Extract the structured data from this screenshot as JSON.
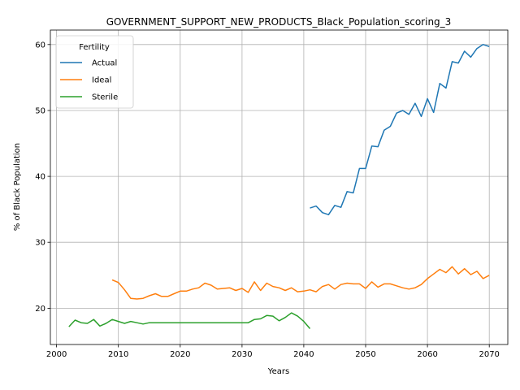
{
  "chart_data": {
    "type": "line",
    "title": "GOVERNMENT_SUPPORT_NEW_PRODUCTS_Black_Population_scoring_3",
    "xlabel": "Years",
    "ylabel": "% of Black Population",
    "xlim": [
      1999,
      2073
    ],
    "ylim": [
      14.5,
      62.2
    ],
    "xticks": [
      2000,
      2010,
      2020,
      2030,
      2040,
      2050,
      2060,
      2070
    ],
    "yticks": [
      20,
      30,
      40,
      50,
      60
    ],
    "grid": true,
    "legend": {
      "title": "Fertility",
      "placement": "top-left"
    },
    "series": [
      {
        "name": "Actual",
        "color": "#1f77b4",
        "x": [
          2041,
          2042,
          2043,
          2044,
          2045,
          2046,
          2047,
          2048,
          2049,
          2050,
          2051,
          2052,
          2053,
          2054,
          2055,
          2056,
          2057,
          2058,
          2059,
          2060,
          2061,
          2062,
          2063,
          2064,
          2065,
          2066,
          2067,
          2068,
          2069,
          2070
        ],
        "y": [
          35.2,
          35.5,
          34.5,
          34.2,
          35.6,
          35.3,
          37.7,
          37.5,
          41.2,
          41.2,
          44.6,
          44.5,
          47.0,
          47.6,
          49.6,
          50.0,
          49.4,
          51.1,
          49.1,
          51.8,
          49.7,
          54.1,
          53.4,
          57.4,
          57.2,
          59.0,
          58.1,
          59.4,
          60.0,
          59.7
        ]
      },
      {
        "name": "Ideal",
        "color": "#ff7f0e",
        "x": [
          2009,
          2010,
          2011,
          2012,
          2013,
          2014,
          2015,
          2016,
          2017,
          2018,
          2019,
          2020,
          2021,
          2022,
          2023,
          2024,
          2025,
          2026,
          2027,
          2028,
          2029,
          2030,
          2031,
          2032,
          2033,
          2034,
          2035,
          2036,
          2037,
          2038,
          2039,
          2040,
          2041,
          2042,
          2043,
          2044,
          2045,
          2046,
          2047,
          2048,
          2049,
          2050,
          2051,
          2052,
          2053,
          2054,
          2055,
          2056,
          2057,
          2058,
          2059,
          2060,
          2061,
          2062,
          2063,
          2064,
          2065,
          2066,
          2067,
          2068,
          2069,
          2070
        ],
        "y": [
          24.3,
          23.9,
          22.8,
          21.5,
          21.4,
          21.5,
          21.9,
          22.2,
          21.8,
          21.8,
          22.2,
          22.6,
          22.6,
          22.9,
          23.1,
          23.8,
          23.5,
          22.9,
          23.0,
          23.1,
          22.7,
          23.0,
          22.4,
          24.0,
          22.7,
          23.8,
          23.3,
          23.1,
          22.7,
          23.1,
          22.5,
          22.6,
          22.8,
          22.5,
          23.3,
          23.6,
          22.9,
          23.6,
          23.8,
          23.7,
          23.7,
          23.0,
          24.0,
          23.2,
          23.7,
          23.7,
          23.4,
          23.1,
          22.9,
          23.1,
          23.6,
          24.5,
          25.2,
          25.9,
          25.4,
          26.3,
          25.2,
          26.0,
          25.1,
          25.6,
          24.5,
          25.0
        ]
      },
      {
        "name": "Sterile",
        "color": "#2ca02c",
        "x": [
          2002,
          2003,
          2004,
          2005,
          2006,
          2007,
          2008,
          2009,
          2010,
          2011,
          2012,
          2013,
          2014,
          2015,
          2016,
          2017,
          2018,
          2019,
          2020,
          2021,
          2022,
          2023,
          2024,
          2025,
          2026,
          2027,
          2028,
          2029,
          2030,
          2031,
          2032,
          2033,
          2034,
          2035,
          2036,
          2037,
          2038,
          2039,
          2040,
          2041
        ],
        "y": [
          17.2,
          18.2,
          17.8,
          17.7,
          18.3,
          17.3,
          17.7,
          18.3,
          18.0,
          17.7,
          18.0,
          17.8,
          17.6,
          17.8,
          17.8,
          17.8,
          17.8,
          17.8,
          17.8,
          17.8,
          17.8,
          17.8,
          17.8,
          17.8,
          17.8,
          17.8,
          17.8,
          17.8,
          17.8,
          17.8,
          18.3,
          18.4,
          18.9,
          18.8,
          18.1,
          18.6,
          19.3,
          18.8,
          18.0,
          16.9
        ]
      }
    ]
  }
}
